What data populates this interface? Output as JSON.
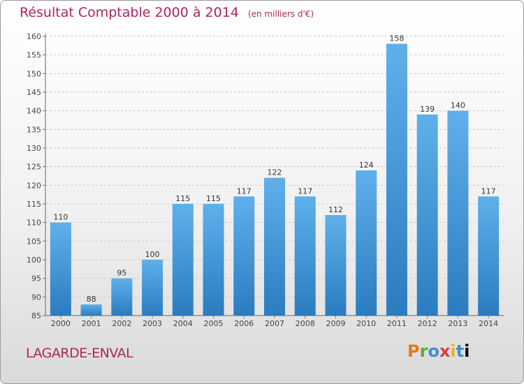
{
  "header": {
    "title": "Résultat Comptable 2000 à 2014",
    "unit": "(en milliers d'€)"
  },
  "footer": {
    "commune": "LAGARDE-ENVAL",
    "logo": "Proxiti"
  },
  "colors": {
    "title": "#b0245f",
    "bar_top": "#5fb0ea",
    "bar_bottom": "#2a7cc0",
    "grid": "#c8c8c8"
  },
  "chart_data": {
    "type": "bar",
    "categories": [
      "2000",
      "2001",
      "2002",
      "2003",
      "2004",
      "2005",
      "2006",
      "2007",
      "2008",
      "2009",
      "2010",
      "2011",
      "2012",
      "2013",
      "2014"
    ],
    "values": [
      110,
      88,
      95,
      100,
      115,
      115,
      117,
      122,
      117,
      112,
      124,
      158,
      139,
      140,
      117
    ],
    "title": "Résultat Comptable 2000 à 2014",
    "subtitle": "(en milliers d'€)",
    "xlabel": "",
    "ylabel": "",
    "ylim": [
      85,
      160
    ],
    "yticks": [
      85,
      90,
      95,
      100,
      105,
      110,
      115,
      120,
      125,
      130,
      135,
      140,
      145,
      150,
      155,
      160
    ],
    "grid": true,
    "data_labels": true
  }
}
